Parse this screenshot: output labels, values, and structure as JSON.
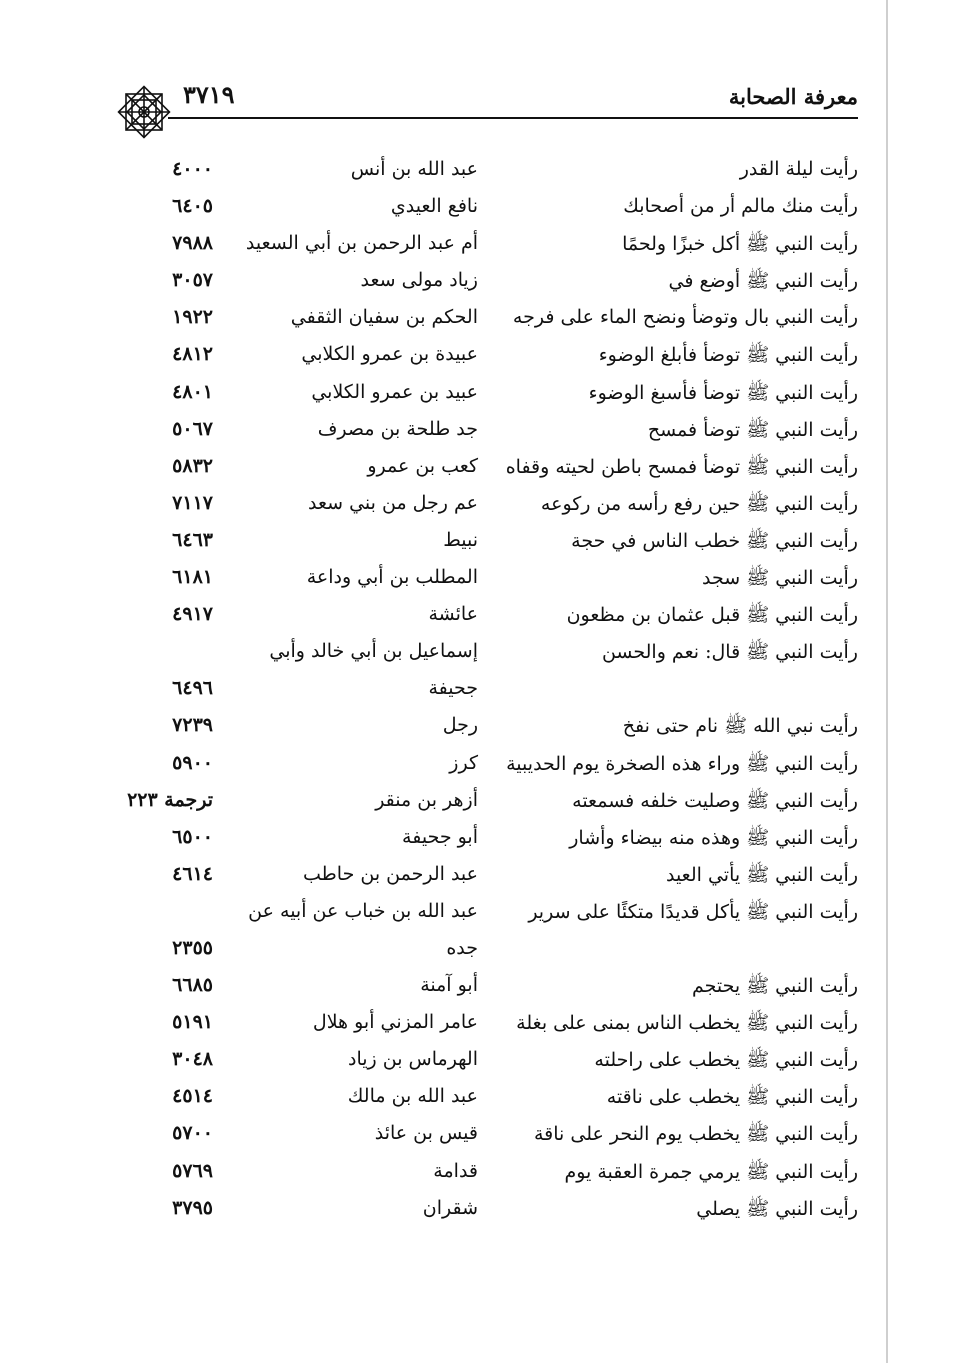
{
  "header": {
    "title": "معرفة الصحابة",
    "page_number": "٣٧١٩",
    "ornament_icon": "eight-point-star-ornament"
  },
  "rows": [
    {
      "hadith": "رأيت ليلة القدر",
      "narrator": "عبد الله بن أنس",
      "number": "٤٠٠٠"
    },
    {
      "hadith": "رأيت منك مالم أر من أصحابك",
      "narrator": "نافع العيدي",
      "number": "٦٤٠٥"
    },
    {
      "hadith": "رأيت النبي ﷺ أكل خبزًا ولحمًا",
      "narrator": "أم عبد الرحمن بن أبي السعيد",
      "number": "٧٩٨٨"
    },
    {
      "hadith": "رأيت النبي ﷺ أوضع في",
      "narrator": "زياد مولى سعد",
      "number": "٣٠٥٧"
    },
    {
      "hadith": "رأيت النبي بال وتوضأ ونضح الماء على فرجه",
      "narrator": "الحكم بن سفيان الثقفي",
      "number": "١٩٢٢"
    },
    {
      "hadith": "رأيت النبي ﷺ توضأ فأبلغ الوضوء",
      "narrator": "عبيدة بن عمرو الكلابي",
      "number": "٤٨١٢"
    },
    {
      "hadith": "رأيت النبي ﷺ توضأ فأسبغ الوضوء",
      "narrator": "عبيد بن عمرو الكلابي",
      "number": "٤٨٠١"
    },
    {
      "hadith": "رأيت النبي ﷺ توضأ فمسح",
      "narrator": "جد طلحة بن مصرف",
      "number": "٥٠٦٧"
    },
    {
      "hadith": "رأيت النبي ﷺ توضأ فمسح باطن لحيته وقفاه",
      "narrator": "كعب بن عمرو",
      "number": "٥٨٣٢"
    },
    {
      "hadith": "رأيت النبي ﷺ حين رفع رأسه من ركوعه",
      "narrator": "عم رجل من بني سعد",
      "number": "٧١١٧"
    },
    {
      "hadith": "رأيت النبي ﷺ خطب الناس في حجة",
      "narrator": "نبيط",
      "number": "٦٤٦٣"
    },
    {
      "hadith": "رأيت النبي ﷺ سجد",
      "narrator": "المطلب بن أبي وداعة",
      "number": "٦١٨١"
    },
    {
      "hadith": "رأيت النبي ﷺ قبل عثمان بن مظعون",
      "narrator": "عائشة",
      "number": "٤٩١٧"
    },
    {
      "hadith": "رأيت النبي ﷺ قال: نعم والحسن",
      "narrator": "إسماعيل بن أبي خالد وأبي",
      "number": ""
    },
    {
      "hadith": "",
      "narrator": "جحيفة",
      "number": "٦٤٩٦"
    },
    {
      "hadith": "رأيت نبي الله ﷺ نام حتى نفخ",
      "narrator": "رجل",
      "number": "٧٢٣٩"
    },
    {
      "hadith": "رأيت النبي ﷺ وراء هذه الصخرة يوم الحديبية",
      "narrator": "كرز",
      "number": "٥٩٠٠"
    },
    {
      "hadith": "رأيت النبي ﷺ وصليت خلفه فسمعته",
      "narrator": "أزهر بن منقر",
      "number": "ترجمة ٢٢٣"
    },
    {
      "hadith": "رأيت النبي ﷺ وهذه منه بيضاء وأشار",
      "narrator": "أبو جحيفة",
      "number": "٦٥٠٠"
    },
    {
      "hadith": "رأيت النبي ﷺ يأتي العيد",
      "narrator": "عبد الرحمن بن حاطب",
      "number": "٤٦١٤"
    },
    {
      "hadith": "رأيت النبي ﷺ يأكل قديدًا متكئًا على سرير",
      "narrator": "عبد الله بن خباب عن أبيه عن",
      "number": ""
    },
    {
      "hadith": "",
      "narrator": "جده",
      "number": "٢٣٥٥"
    },
    {
      "hadith": "رأيت النبي ﷺ يحتجم",
      "narrator": "أبو آمنة",
      "number": "٦٦٨٥"
    },
    {
      "hadith": "رأيت النبي ﷺ يخطب الناس بمنى على بغلة",
      "narrator": "عامر المزني أبو هلال",
      "number": "٥١٩١"
    },
    {
      "hadith": "رأيت النبي ﷺ يخطب على راحلته",
      "narrator": "الهرماس بن زياد",
      "number": "٣٠٤٨"
    },
    {
      "hadith": "رأيت النبي ﷺ يخطب على ناقته",
      "narrator": "عبد الله بن مالك",
      "number": "٤٥١٤"
    },
    {
      "hadith": "رأيت النبي ﷺ يخطب يوم النحر على ناقة",
      "narrator": "قيس بن عائذ",
      "number": "٥٧٠٠"
    },
    {
      "hadith": "رأيت النبي ﷺ يرمي جمرة العقبة يوم",
      "narrator": "قدامة",
      "number": "٥٧٦٩"
    },
    {
      "hadith": "رأيت النبي ﷺ يصلي",
      "narrator": "شقران",
      "number": "٣٧٩٥"
    }
  ]
}
